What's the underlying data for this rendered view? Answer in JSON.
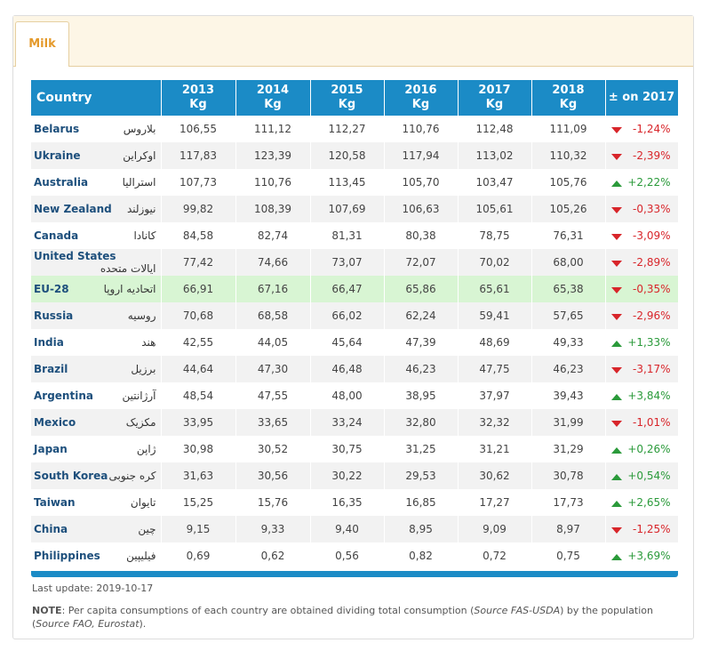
{
  "tab": "Milk",
  "table": {
    "header": {
      "country": "Country",
      "years": [
        {
          "year": "2013",
          "unit": "Kg"
        },
        {
          "year": "2014",
          "unit": "Kg"
        },
        {
          "year": "2015",
          "unit": "Kg"
        },
        {
          "year": "2016",
          "unit": "Kg"
        },
        {
          "year": "2017",
          "unit": "Kg"
        },
        {
          "year": "2018",
          "unit": "Kg"
        }
      ],
      "change": "± on 2017"
    },
    "rows": [
      {
        "country": "Belarus",
        "native": "بلاروس",
        "values": [
          "106,55",
          "111,12",
          "112,27",
          "110,76",
          "112,48",
          "111,09"
        ],
        "change": "-1,24%",
        "trend": "down"
      },
      {
        "country": "Ukraine",
        "native": "اوکراین",
        "values": [
          "117,83",
          "123,39",
          "120,58",
          "117,94",
          "113,02",
          "110,32"
        ],
        "change": "-2,39%",
        "trend": "down"
      },
      {
        "country": "Australia",
        "native": "استرالیا",
        "values": [
          "107,73",
          "110,76",
          "113,45",
          "105,70",
          "103,47",
          "105,76"
        ],
        "change": "+2,22%",
        "trend": "up"
      },
      {
        "country": "New Zealand",
        "native": "نیوزلند",
        "values": [
          "99,82",
          "108,39",
          "107,69",
          "106,63",
          "105,61",
          "105,26"
        ],
        "change": "-0,33%",
        "trend": "down"
      },
      {
        "country": "Canada",
        "native": "کانادا",
        "values": [
          "84,58",
          "82,74",
          "81,31",
          "80,38",
          "78,75",
          "76,31"
        ],
        "change": "-3,09%",
        "trend": "down"
      },
      {
        "country": "United States",
        "native": "ایالات متحده",
        "values": [
          "77,42",
          "74,66",
          "73,07",
          "72,07",
          "70,02",
          "68,00"
        ],
        "change": "-2,89%",
        "trend": "down"
      },
      {
        "country": "EU-28",
        "native": "اتحادیه اروپا",
        "values": [
          "66,91",
          "67,16",
          "66,47",
          "65,86",
          "65,61",
          "65,38"
        ],
        "change": "-0,35%",
        "trend": "down",
        "highlighted": true
      },
      {
        "country": "Russia",
        "native": "روسیه",
        "values": [
          "70,68",
          "68,58",
          "66,02",
          "62,24",
          "59,41",
          "57,65"
        ],
        "change": "-2,96%",
        "trend": "down"
      },
      {
        "country": "India",
        "native": "هند",
        "values": [
          "42,55",
          "44,05",
          "45,64",
          "47,39",
          "48,69",
          "49,33"
        ],
        "change": "+1,33%",
        "trend": "up"
      },
      {
        "country": "Brazil",
        "native": "برزیل",
        "values": [
          "44,64",
          "47,30",
          "46,48",
          "46,23",
          "47,75",
          "46,23"
        ],
        "change": "-3,17%",
        "trend": "down"
      },
      {
        "country": "Argentina",
        "native": "آرژانتین",
        "values": [
          "48,54",
          "47,55",
          "48,00",
          "38,95",
          "37,97",
          "39,43"
        ],
        "change": "+3,84%",
        "trend": "up"
      },
      {
        "country": "Mexico",
        "native": "مکزیک",
        "values": [
          "33,95",
          "33,65",
          "33,24",
          "32,80",
          "32,32",
          "31,99"
        ],
        "change": "-1,01%",
        "trend": "down"
      },
      {
        "country": "Japan",
        "native": "ژاپن",
        "values": [
          "30,98",
          "30,52",
          "30,75",
          "31,25",
          "31,21",
          "31,29"
        ],
        "change": "+0,26%",
        "trend": "up"
      },
      {
        "country": "South Korea",
        "native": "کره جنوبی",
        "values": [
          "31,63",
          "30,56",
          "30,22",
          "29,53",
          "30,62",
          "30,78"
        ],
        "change": "+0,54%",
        "trend": "up"
      },
      {
        "country": "Taiwan",
        "native": "تایوان",
        "values": [
          "15,25",
          "15,76",
          "16,35",
          "16,85",
          "17,27",
          "17,73"
        ],
        "change": "+2,65%",
        "trend": "up"
      },
      {
        "country": "China",
        "native": "چین",
        "values": [
          "9,15",
          "9,33",
          "9,40",
          "8,95",
          "9,09",
          "8,97"
        ],
        "change": "-1,25%",
        "trend": "down"
      },
      {
        "country": "Philippines",
        "native": "فیلیپین",
        "values": [
          "0,69",
          "0,62",
          "0,56",
          "0,82",
          "0,72",
          "0,75"
        ],
        "change": "+3,69%",
        "trend": "up"
      }
    ]
  },
  "last_update": "Last update: 2019-10-17",
  "note": {
    "label": "NOTE",
    "parts": [
      ": Per capita consumptions of each country are obtained dividing total consumption (",
      "Source FAS-USDA",
      ") by the population (",
      "Source FAO, Eurostat",
      ")."
    ]
  }
}
